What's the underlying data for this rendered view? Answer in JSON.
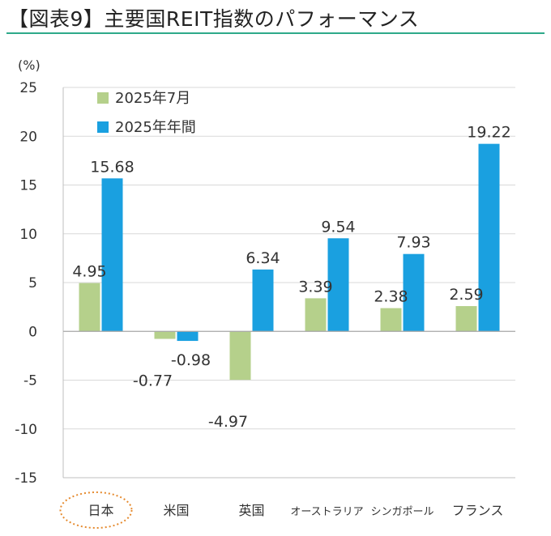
{
  "title": "【図表9】主要国REIT指数のパフォーマンス",
  "colors": {
    "series_july": "#b5d08b",
    "series_year": "#1aa0e0",
    "negative_label": "#e04a4a",
    "highlight_ellipse": "#e58a2e",
    "title_rule": "#2ea98a"
  },
  "chart_data": {
    "type": "bar",
    "ylabel": "(%)",
    "ylim": [
      -15,
      25
    ],
    "yticks": [
      25,
      20,
      15,
      10,
      5,
      0,
      -5,
      -10,
      -15
    ],
    "grid": true,
    "legend_position": "top-left",
    "categories": [
      "日本",
      "米国",
      "英国",
      "オーストラリア",
      "シンガポール",
      "フランス"
    ],
    "highlighted_category": "日本",
    "series": [
      {
        "name": "2025年7月",
        "values": [
          4.95,
          -0.77,
          -4.97,
          3.39,
          2.38,
          2.59
        ],
        "labels": [
          "4.95",
          "-0.77",
          "-4.97",
          "3.39",
          "2.38",
          "2.59"
        ]
      },
      {
        "name": "2025年年間",
        "values": [
          15.68,
          -0.98,
          6.34,
          9.54,
          7.93,
          19.22
        ],
        "labels": [
          "15.68",
          "-0.98",
          "6.34",
          "9.54",
          "7.93",
          "19.22"
        ]
      }
    ]
  }
}
